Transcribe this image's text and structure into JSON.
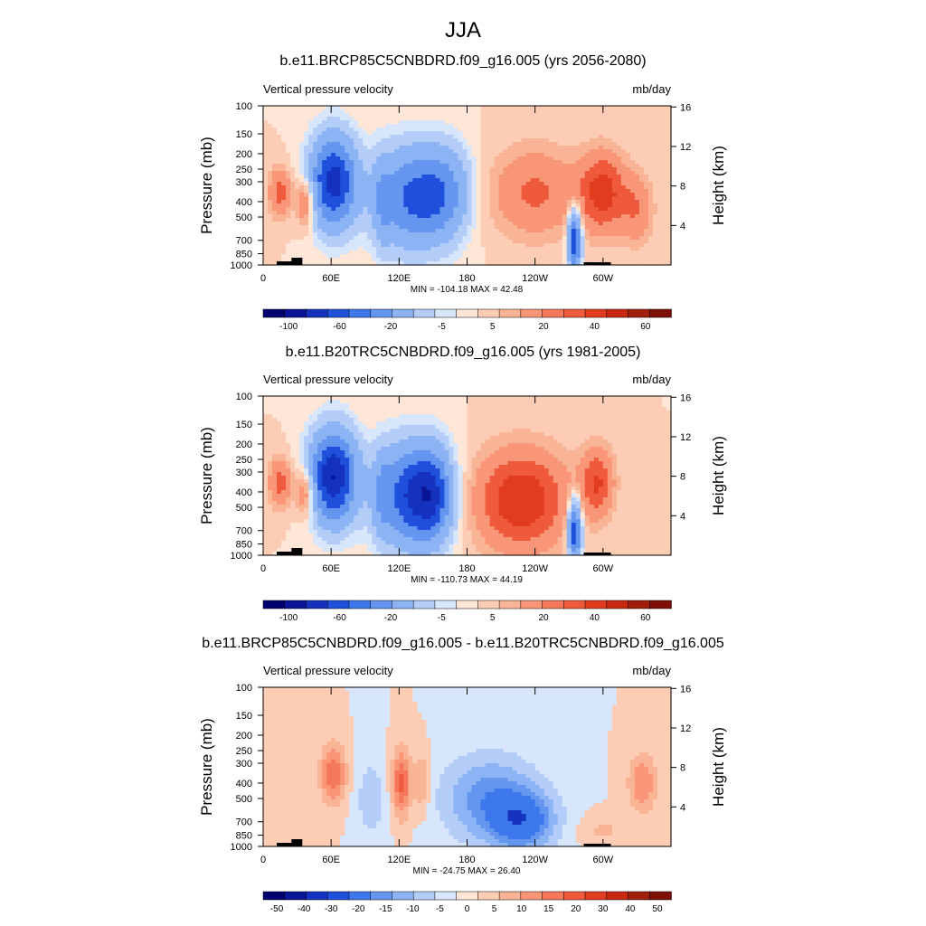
{
  "figure": {
    "title": "JJA",
    "y_label_left": "Pressure (mb)",
    "y_label_right": "Height (km)",
    "left_label": "Vertical pressure velocity",
    "right_label": "mb/day"
  },
  "chart_data": [
    {
      "type": "heatmap",
      "panel": "top",
      "title": "b.e11.BRCP85C5CNBDRD.f09_g16.005 (yrs 2056-2080)",
      "left_label": "Vertical pressure velocity",
      "right_label": "mb/day",
      "xlabel": "",
      "ylabel": "Pressure (mb)",
      "y2label": "Height (km)",
      "x_ticks": [
        "0",
        "60E",
        "120E",
        "180",
        "120W",
        "60W"
      ],
      "y_ticks": [
        "100",
        "150",
        "200",
        "250",
        "300",
        "400",
        "500",
        "700",
        "850",
        "1000"
      ],
      "y2_ticks": [
        "16",
        "12",
        "8",
        "4"
      ],
      "stats": "MIN = -104.18  MAX =  42.48",
      "colorbar_labels": [
        "-100",
        "-60",
        "-20",
        "-5",
        "5",
        "20",
        "40",
        "60"
      ],
      "features": [
        {
          "lon": 15,
          "p": 350,
          "value": 25,
          "wx": 7,
          "wy": 0.5
        },
        {
          "lon": 38,
          "p": 400,
          "value": 30,
          "wx": 6,
          "wy": 0.5
        },
        {
          "lon": 62,
          "p": 300,
          "value": -90,
          "wx": 14,
          "wy": 0.9
        },
        {
          "lon": 105,
          "p": 400,
          "value": -20,
          "wx": 5,
          "wy": 0.9
        },
        {
          "lon": 130,
          "p": 380,
          "value": -60,
          "wx": 22,
          "wy": 1.0
        },
        {
          "lon": 160,
          "p": 350,
          "value": -40,
          "wx": 16,
          "wy": 0.9
        },
        {
          "lon": 240,
          "p": 350,
          "value": 22,
          "wx": 28,
          "wy": 0.9
        },
        {
          "lon": 275,
          "p": 700,
          "value": -80,
          "wx": 4,
          "wy": 0.6
        },
        {
          "lon": 300,
          "p": 350,
          "value": 35,
          "wx": 14,
          "wy": 0.8
        },
        {
          "lon": 330,
          "p": 450,
          "value": 18,
          "wx": 10,
          "wy": 0.7
        }
      ]
    },
    {
      "type": "heatmap",
      "panel": "middle",
      "title": "b.e11.B20TRC5CNBDRD.f09_g16.005 (yrs 1981-2005)",
      "left_label": "Vertical pressure velocity",
      "right_label": "mb/day",
      "xlabel": "",
      "ylabel": "Pressure (mb)",
      "y2label": "Height (km)",
      "x_ticks": [
        "0",
        "60E",
        "120E",
        "180",
        "120W",
        "60W"
      ],
      "y_ticks": [
        "100",
        "150",
        "200",
        "250",
        "300",
        "400",
        "500",
        "700",
        "850",
        "1000"
      ],
      "y2_ticks": [
        "16",
        "12",
        "8",
        "4"
      ],
      "stats": "MIN = -110.73  MAX =  44.19",
      "colorbar_labels": [
        "-100",
        "-60",
        "-20",
        "-5",
        "5",
        "20",
        "40",
        "60"
      ],
      "features": [
        {
          "lon": 15,
          "p": 350,
          "value": 25,
          "wx": 7,
          "wy": 0.5
        },
        {
          "lon": 38,
          "p": 400,
          "value": 30,
          "wx": 6,
          "wy": 0.5
        },
        {
          "lon": 62,
          "p": 320,
          "value": -100,
          "wx": 14,
          "wy": 0.9
        },
        {
          "lon": 105,
          "p": 400,
          "value": -20,
          "wx": 5,
          "wy": 0.9
        },
        {
          "lon": 130,
          "p": 420,
          "value": -75,
          "wx": 20,
          "wy": 1.0
        },
        {
          "lon": 150,
          "p": 420,
          "value": -50,
          "wx": 12,
          "wy": 0.9
        },
        {
          "lon": 228,
          "p": 450,
          "value": 40,
          "wx": 28,
          "wy": 1.0
        },
        {
          "lon": 275,
          "p": 700,
          "value": -80,
          "wx": 4,
          "wy": 0.6
        },
        {
          "lon": 295,
          "p": 350,
          "value": 30,
          "wx": 10,
          "wy": 0.7
        }
      ]
    },
    {
      "type": "heatmap",
      "panel": "bottom",
      "title": "b.e11.BRCP85C5CNBDRD.f09_g16.005 - b.e11.B20TRC5CNBDRD.f09_g16.005",
      "left_label": "Vertical pressure velocity",
      "right_label": "mb/day",
      "xlabel": "",
      "ylabel": "Pressure (mb)",
      "y2label": "Height (km)",
      "x_ticks": [
        "0",
        "60E",
        "120E",
        "180",
        "120W",
        "60W"
      ],
      "y_ticks": [
        "100",
        "150",
        "200",
        "250",
        "300",
        "400",
        "500",
        "700",
        "850",
        "1000"
      ],
      "y2_ticks": [
        "16",
        "12",
        "8",
        "4"
      ],
      "stats": "MIN = -24.75  MAX =  26.40",
      "colorbar_labels": [
        "-50",
        "-40",
        "-30",
        "-20",
        "-15",
        "-10",
        "-5",
        "0",
        "5",
        "10",
        "15",
        "20",
        "30",
        "40",
        "50"
      ],
      "features": [
        {
          "lon": 62,
          "p": 350,
          "value": 20,
          "wx": 8,
          "wy": 0.6
        },
        {
          "lon": 95,
          "p": 500,
          "value": -8,
          "wx": 10,
          "wy": 0.9
        },
        {
          "lon": 122,
          "p": 400,
          "value": 22,
          "wx": 6,
          "wy": 0.7
        },
        {
          "lon": 140,
          "p": 400,
          "value": 12,
          "wx": 5,
          "wy": 0.6
        },
        {
          "lon": 200,
          "p": 500,
          "value": -18,
          "wx": 30,
          "wy": 0.9
        },
        {
          "lon": 230,
          "p": 700,
          "value": -22,
          "wx": 20,
          "wy": 0.6
        },
        {
          "lon": 300,
          "p": 800,
          "value": 6,
          "wx": 15,
          "wy": 0.3
        },
        {
          "lon": 335,
          "p": 400,
          "value": 15,
          "wx": 9,
          "wy": 0.6
        }
      ]
    }
  ],
  "colormaps": {
    "abs": [
      "#00006e",
      "#0a1496",
      "#1432be",
      "#1e50dc",
      "#3c78eb",
      "#6496f0",
      "#8cb4f5",
      "#b4cdf8",
      "#d7e6fa",
      "#ffe6d7",
      "#fccdb4",
      "#f9b496",
      "#f99678",
      "#f5785a",
      "#f05a3c",
      "#e13c1e",
      "#c8280f",
      "#a01e0a",
      "#7d0f05"
    ],
    "abs_levels": [
      -120,
      -100,
      -80,
      -60,
      -40,
      -20,
      -10,
      -5,
      0,
      5,
      10,
      20,
      30,
      40,
      50,
      60
    ],
    "diff": [
      "#00006e",
      "#0a1496",
      "#1432be",
      "#1e50dc",
      "#3c78eb",
      "#6496f0",
      "#8cb4f5",
      "#b4cdf8",
      "#d7e6fa",
      "#ffe6d7",
      "#fccdb4",
      "#f9b496",
      "#f99678",
      "#f5785a",
      "#f05a3c",
      "#e13c1e",
      "#c8280f",
      "#a01e0a",
      "#7d0f05"
    ],
    "diff_levels": [
      -50,
      -40,
      -30,
      -20,
      -15,
      -10,
      -5,
      0,
      5,
      10,
      15,
      20,
      30,
      40,
      50
    ]
  }
}
